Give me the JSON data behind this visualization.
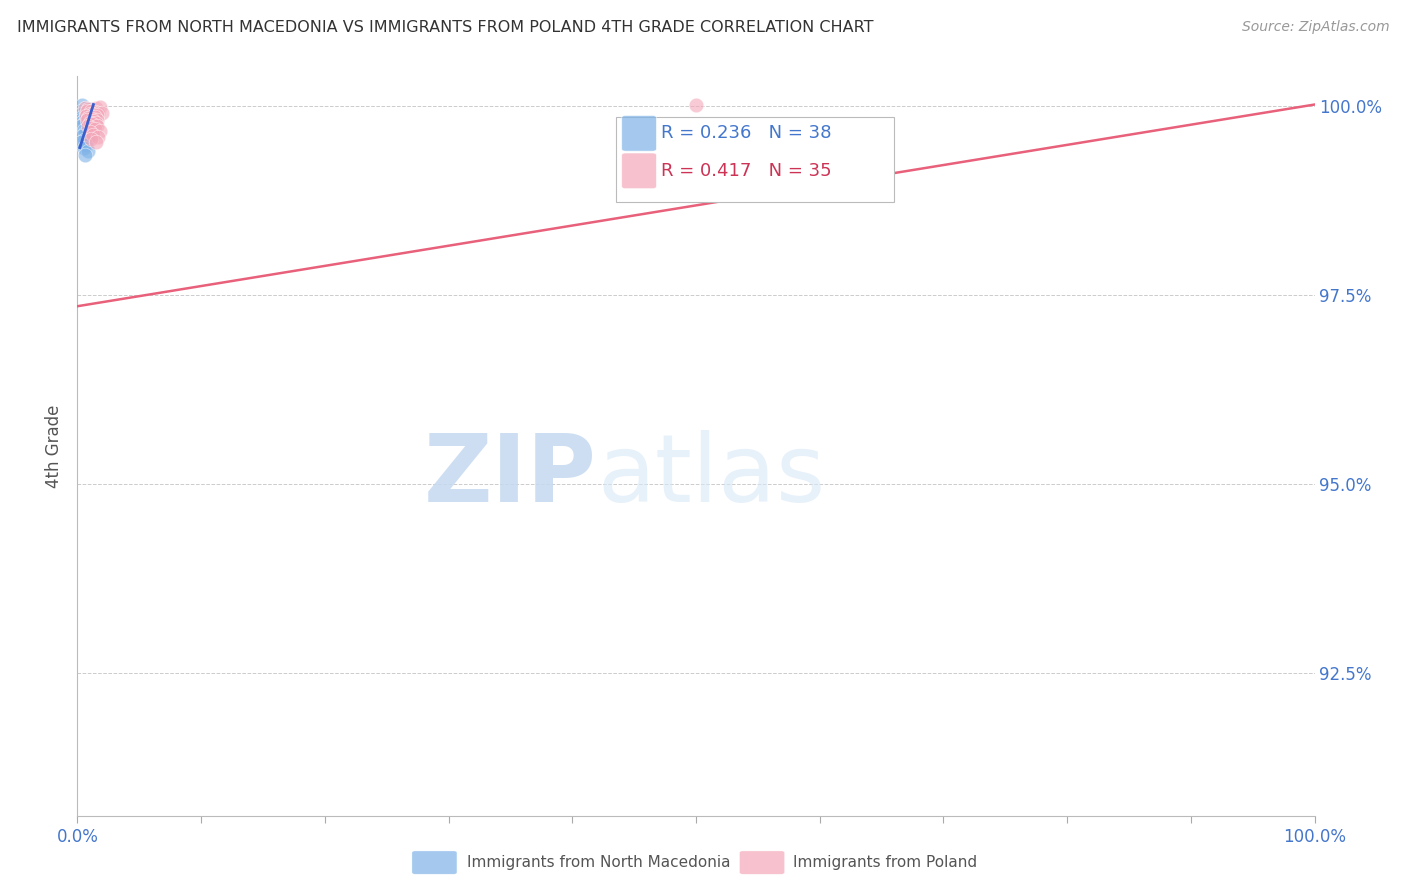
{
  "title": "IMMIGRANTS FROM NORTH MACEDONIA VS IMMIGRANTS FROM POLAND 4TH GRADE CORRELATION CHART",
  "source": "Source: ZipAtlas.com",
  "ylabel": "4th Grade",
  "x_min": 0.0,
  "x_max": 1.0,
  "y_min": 0.906,
  "y_max": 1.004,
  "y_ticks": [
    0.925,
    0.95,
    0.975,
    1.0
  ],
  "y_tick_labels": [
    "92.5%",
    "95.0%",
    "97.5%",
    "100.0%"
  ],
  "x_tick_vals": [
    0.0,
    0.1,
    0.2,
    0.3,
    0.4,
    0.5,
    0.6,
    0.7,
    0.8,
    0.9,
    1.0
  ],
  "blue_color": "#7FB3E8",
  "pink_color": "#F4A7B9",
  "blue_line_color": "#3A5FCD",
  "pink_line_color": "#E8607A",
  "legend_R_blue": "0.236",
  "legend_N_blue": "38",
  "legend_R_pink": "0.417",
  "legend_N_pink": "35",
  "legend_label_blue": "Immigrants from North Macedonia",
  "legend_label_pink": "Immigrants from Poland",
  "watermark_zip": "ZIP",
  "watermark_atlas": "atlas",
  "blue_scatter_x": [
    0.004,
    0.007,
    0.01,
    0.006,
    0.008,
    0.003,
    0.005,
    0.009,
    0.004,
    0.006,
    0.003,
    0.007,
    0.005,
    0.008,
    0.004,
    0.006,
    0.009,
    0.003,
    0.005,
    0.007,
    0.004,
    0.006,
    0.005,
    0.008,
    0.003,
    0.01,
    0.007,
    0.005,
    0.012,
    0.006,
    0.004,
    0.009,
    0.005,
    0.003,
    0.007,
    0.005,
    0.009,
    0.006
  ],
  "blue_scatter_y": [
    1.0002,
    0.9998,
    0.9996,
    0.9995,
    0.9994,
    0.9993,
    0.9992,
    0.9991,
    0.999,
    0.9989,
    0.999,
    0.9988,
    0.9987,
    0.9986,
    0.9985,
    0.9984,
    0.9983,
    0.9982,
    0.9981,
    0.998,
    0.9979,
    0.9978,
    0.9977,
    0.9975,
    0.9973,
    0.9972,
    0.997,
    0.9968,
    0.9966,
    0.9964,
    0.9961,
    0.9958,
    0.9955,
    0.9952,
    0.9949,
    0.9945,
    0.994,
    0.9935
  ],
  "pink_scatter_x": [
    0.006,
    0.009,
    0.012,
    0.015,
    0.018,
    0.008,
    0.011,
    0.014,
    0.017,
    0.02,
    0.01,
    0.013,
    0.016,
    0.007,
    0.011,
    0.014,
    0.009,
    0.012,
    0.016,
    0.008,
    0.013,
    0.01,
    0.015,
    0.012,
    0.009,
    0.016,
    0.011,
    0.014,
    0.018,
    0.01,
    0.013,
    0.017,
    0.011,
    0.015,
    0.5
  ],
  "pink_scatter_y": [
    0.9998,
    0.9996,
    0.9994,
    0.9998,
    0.9999,
    0.9994,
    0.9993,
    0.9992,
    0.9991,
    0.9991,
    0.999,
    0.9989,
    0.9988,
    0.9987,
    0.9986,
    0.9985,
    0.9984,
    0.9983,
    0.9982,
    0.9981,
    0.998,
    0.9978,
    0.9977,
    0.9976,
    0.9974,
    0.9973,
    0.9971,
    0.9969,
    0.9967,
    0.9965,
    0.9962,
    0.9959,
    0.9956,
    0.9952,
    1.0002
  ],
  "blue_line_x": [
    0.002,
    0.013
  ],
  "blue_line_y": [
    0.9945,
    1.0002
  ],
  "pink_line_x": [
    0.0,
    1.0
  ],
  "pink_line_y": [
    0.9735,
    1.0002
  ]
}
